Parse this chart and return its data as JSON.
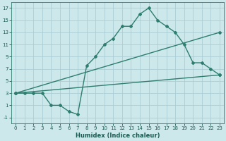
{
  "background_color": "#cce8eb",
  "grid_color": "#aacdd4",
  "line_color": "#2e7d6e",
  "xlabel": "Humidex (Indice chaleur)",
  "xlim": [
    -0.5,
    23.5
  ],
  "ylim": [
    -2,
    18
  ],
  "xticks": [
    0,
    1,
    2,
    3,
    4,
    5,
    6,
    7,
    8,
    9,
    10,
    11,
    12,
    13,
    14,
    15,
    16,
    17,
    18,
    19,
    20,
    21,
    22,
    23
  ],
  "yticks": [
    -1,
    1,
    3,
    5,
    7,
    9,
    11,
    13,
    15,
    17
  ],
  "line1_x": [
    0,
    1,
    2,
    3,
    4,
    5,
    6,
    7,
    8,
    9,
    10,
    11,
    12,
    13,
    14,
    15,
    16,
    17,
    18,
    19,
    20,
    21,
    22,
    23
  ],
  "line1_y": [
    3,
    3,
    3,
    3,
    1,
    1,
    0,
    -0.5,
    7.5,
    9,
    11,
    12,
    14,
    14,
    16,
    17,
    15,
    14,
    13,
    11,
    8,
    8,
    7,
    6
  ],
  "line2_x": [
    0,
    23
  ],
  "line2_y": [
    3,
    13
  ],
  "line3_x": [
    0,
    23
  ],
  "line3_y": [
    3,
    6
  ],
  "marker": "D",
  "markersize": 2,
  "linewidth": 1.0
}
